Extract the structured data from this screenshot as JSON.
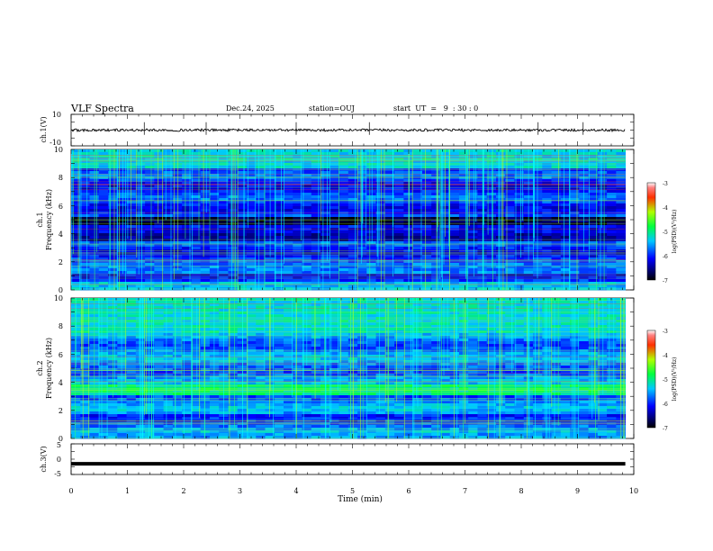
{
  "header": {
    "title": "VLF Spectra",
    "date": "Dec.24, 2025",
    "station": "station=OUJ",
    "start": "start  UT  =   9  : 30 : 0"
  },
  "chart_data": [
    {
      "type": "line",
      "name": "ch1-waveform",
      "ylabel": "ch.1(V)",
      "ylim": [
        -10,
        10
      ],
      "yticks": [
        "10",
        "-10"
      ],
      "baseline": 0,
      "xlim": [
        0,
        10
      ]
    },
    {
      "type": "heatmap",
      "name": "ch1-spectrogram",
      "ylabel": "ch.1\nFrequency (kHz)",
      "ylabel_line1": "ch.1",
      "ylabel_line2": "Frequency (kHz)",
      "ylim": [
        0,
        10
      ],
      "yticks": [
        "0",
        "2",
        "4",
        "6",
        "8",
        "10"
      ],
      "xlim": [
        0,
        9.85
      ],
      "colorbar": {
        "label": "log(PSD)(V²/Hz)",
        "range": [
          -7,
          -3
        ],
        "ticks": [
          "-3",
          "-4",
          "-5",
          "-6",
          "-7"
        ]
      }
    },
    {
      "type": "heatmap",
      "name": "ch2-spectrogram",
      "ylabel": "ch.2\nFrequency (kHz)",
      "ylabel_line1": "ch.2",
      "ylabel_line2": "Frequency (kHz)",
      "ylim": [
        0,
        10
      ],
      "yticks": [
        "0",
        "2",
        "4",
        "6",
        "8",
        "10"
      ],
      "xlim": [
        0,
        9.85
      ],
      "colorbar": {
        "label": "log(PSD)(V²/Hz)",
        "range": [
          -7,
          -3
        ],
        "ticks": [
          "-3",
          "-4",
          "-5",
          "-6",
          "-7"
        ]
      }
    },
    {
      "type": "line",
      "name": "ch3-waveform",
      "ylabel": "ch.3(V)",
      "ylim": [
        -5,
        5
      ],
      "yticks": [
        "5",
        "0",
        "-5"
      ],
      "baseline": -1.5,
      "xlim": [
        0,
        10
      ]
    }
  ],
  "xaxis": {
    "label": "Time  (min)",
    "ticks": [
      "0",
      "1",
      "2",
      "3",
      "4",
      "5",
      "6",
      "7",
      "8",
      "9",
      "10"
    ],
    "xlim": [
      0,
      10
    ]
  },
  "colors": {
    "trace": "#000000",
    "axis": "#000000"
  }
}
